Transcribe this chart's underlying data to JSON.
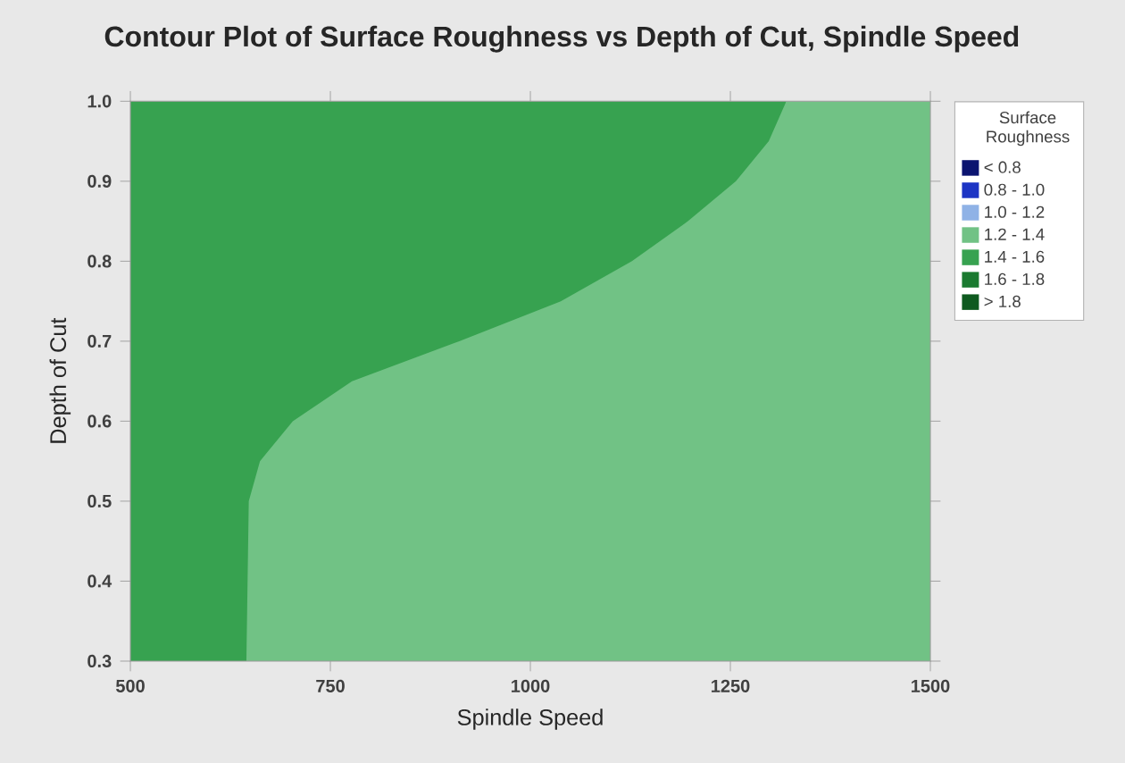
{
  "chart_data": {
    "type": "area",
    "title": "Contour Plot of Surface Roughness vs Depth of Cut, Spindle Speed",
    "xlabel": "Spindle Speed",
    "ylabel": "Depth of Cut",
    "legend_title": "Surface Roughness",
    "legend": "right",
    "x": [
      500,
      645,
      648,
      662,
      703,
      777,
      911,
      1038,
      1127,
      1197,
      1257,
      1298,
      1320,
      1500
    ],
    "series": [
      {
        "name": "< 0.8",
        "color": "#0b1470",
        "values": [
          null,
          null,
          null,
          null,
          null,
          null,
          null,
          null,
          null,
          null,
          null,
          null,
          null,
          null
        ]
      },
      {
        "name": "0.8 - 1.0",
        "color": "#1c34c4",
        "values": [
          null,
          null,
          null,
          null,
          null,
          null,
          null,
          null,
          null,
          null,
          null,
          null,
          null,
          null
        ]
      },
      {
        "name": "1.0 - 1.2",
        "color": "#8fb2e6",
        "values": [
          null,
          null,
          null,
          null,
          null,
          null,
          null,
          null,
          null,
          null,
          null,
          null,
          null,
          null
        ]
      },
      {
        "name": "1.2 - 1.4",
        "color": "#71c285",
        "values": [
          0.3,
          0.3,
          0.5,
          0.55,
          0.6,
          0.65,
          0.7,
          0.75,
          0.8,
          0.85,
          0.9,
          0.95,
          1.0,
          1.0
        ]
      },
      {
        "name": "1.4 - 1.6",
        "color": "#37a250",
        "x": [
          500,
          1320
        ],
        "values": [
          1.0,
          1.0
        ]
      },
      {
        "name": "1.6 - 1.8",
        "color": "#1a7a30",
        "values": [
          null,
          null,
          null,
          null,
          null,
          null,
          null,
          null,
          null,
          null,
          null,
          null,
          null,
          null
        ]
      },
      {
        "name": "> 1.8",
        "color": "#0e5a1f",
        "values": [
          null,
          null,
          null,
          null,
          null,
          null,
          null,
          null,
          null,
          null,
          null,
          null,
          null,
          null
        ]
      }
    ],
    "xlim": [
      500,
      1500
    ],
    "xticks": [
      500,
      750,
      1000,
      1250,
      1500
    ],
    "ylim": [
      0.3,
      1.0
    ],
    "yticks": [
      0.3,
      0.4,
      0.5,
      0.6,
      0.7,
      0.8,
      0.9,
      {
        "value": 1.0,
        "label": "1.0"
      }
    ]
  }
}
